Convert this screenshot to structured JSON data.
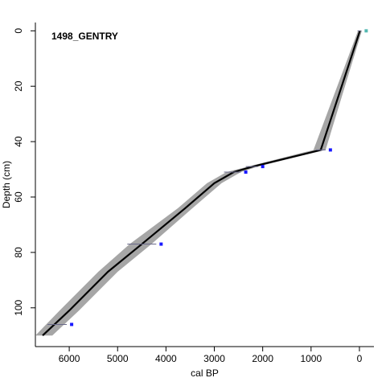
{
  "chart_data": {
    "type": "line",
    "title": "1498_GENTRY",
    "xlabel": "cal BP",
    "ylabel": "Depth (cm)",
    "x_reversed": true,
    "y_reversed": true,
    "xlim": [
      6700,
      -300
    ],
    "ylim": [
      114,
      -3
    ],
    "x_ticks": [
      6000,
      5000,
      4000,
      3000,
      2000,
      1000,
      0
    ],
    "y_ticks": [
      0,
      20,
      40,
      60,
      80,
      100
    ],
    "model_line": {
      "name": "",
      "color": "#000000",
      "x": [
        -10,
        800,
        2200,
        2600,
        3000,
        3600,
        4500,
        5200,
        6000,
        6550
      ],
      "y": [
        0,
        43,
        49,
        51,
        55,
        64,
        77,
        87,
        101,
        110
      ]
    },
    "uncertainty_band": {
      "color": "#a6a6a6",
      "x_min": [
        -50,
        700,
        2100,
        2450,
        2850,
        3450,
        4300,
        5000,
        5800,
        6350
      ],
      "x_max": [
        30,
        950,
        2300,
        2750,
        3150,
        3750,
        4750,
        5400,
        6200,
        6700
      ],
      "y": [
        0,
        43,
        49,
        51,
        55,
        64,
        77,
        87,
        101,
        110
      ]
    },
    "dates": {
      "color": "#0000ff",
      "points": [
        {
          "depth": 0,
          "age": 0,
          "age_min": -40,
          "age_max": 40,
          "color": "#40b0a8"
        },
        {
          "depth": 43,
          "age": 800,
          "age_min": 700,
          "age_max": 900
        },
        {
          "depth": 49,
          "age": 2200,
          "age_min": 2100,
          "age_max": 2350
        },
        {
          "depth": 51,
          "age": 2600,
          "age_min": 2450,
          "age_max": 2800
        },
        {
          "depth": 77,
          "age": 4500,
          "age_min": 4200,
          "age_max": 4800
        },
        {
          "depth": 106,
          "age": 6250,
          "age_min": 6050,
          "age_max": 6450
        }
      ]
    },
    "grid": false,
    "legend": "none"
  }
}
